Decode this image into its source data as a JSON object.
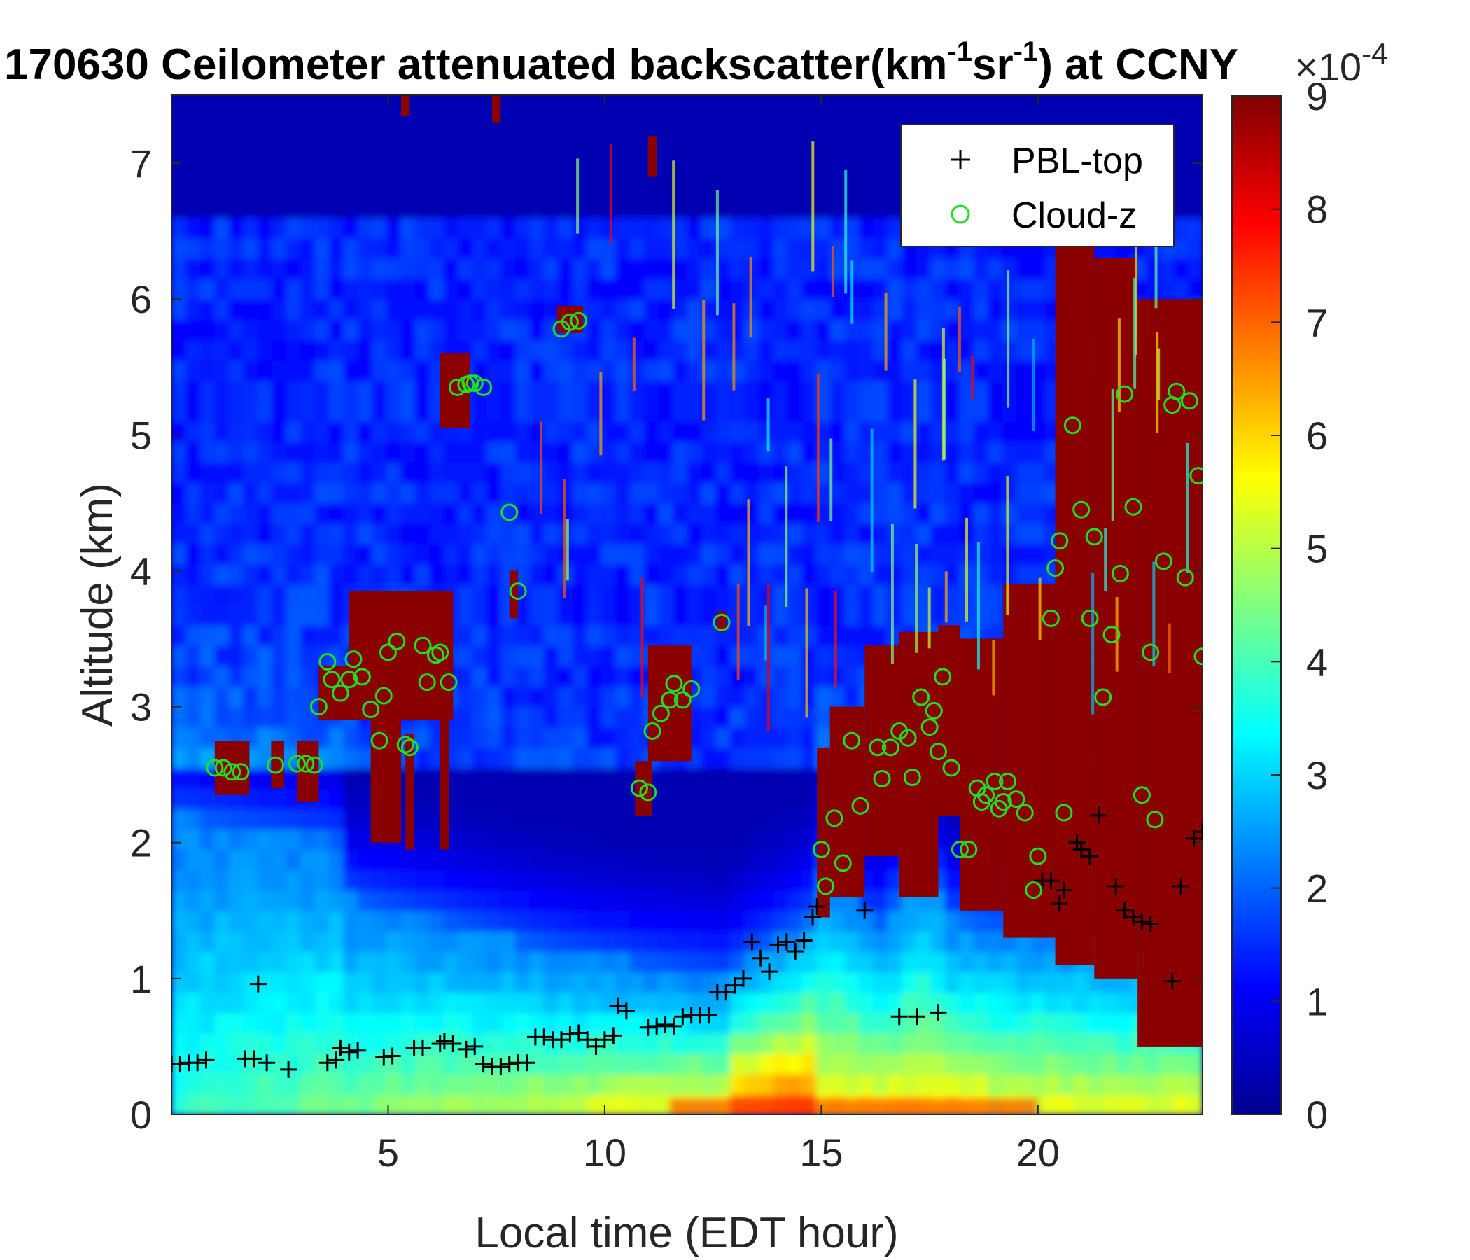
{
  "chart_data": {
    "type": "heatmap",
    "title": "170630 Ceilometer attenuated backscatter(km",
    "title_exp1": "-1",
    "title_mid": "sr",
    "title_exp2": "-1",
    "title_end": ") at CCNY",
    "xlabel": "Local time (EDT hour)",
    "ylabel": "Altitude (km)",
    "xlim": [
      0,
      23.8
    ],
    "ylim": [
      0,
      7.5
    ],
    "xticks": [
      "5",
      "10",
      "15",
      "20"
    ],
    "xtick_values": [
      5,
      10,
      15,
      20
    ],
    "yticks": [
      "0",
      "1",
      "2",
      "3",
      "4",
      "5",
      "6",
      "7"
    ],
    "ytick_values": [
      0,
      1,
      2,
      3,
      4,
      5,
      6,
      7
    ],
    "colorbar": {
      "colormap": "jet",
      "range": [
        0,
        9
      ],
      "ticks": [
        "0",
        "1",
        "2",
        "3",
        "4",
        "5",
        "6",
        "7",
        "8",
        "9"
      ],
      "tick_values": [
        0,
        1,
        2,
        3,
        4,
        5,
        6,
        7,
        8,
        9
      ],
      "multiplier_base": "×10",
      "multiplier_exp": "-4"
    },
    "legend": {
      "placement": "top-right",
      "entries": [
        {
          "label": "PBL-top",
          "marker": "+",
          "color": "#000000"
        },
        {
          "label": "Cloud-z",
          "marker": "o",
          "color": "#22dd22"
        }
      ]
    },
    "series": [
      {
        "name": "PBL-top",
        "marker": "+",
        "color": "#000000",
        "points": [
          [
            0,
            0.37
          ],
          [
            0.2,
            0.37
          ],
          [
            0.4,
            0.38
          ],
          [
            0.6,
            0.38
          ],
          [
            0.8,
            0.4
          ],
          [
            1.7,
            0.41
          ],
          [
            1.9,
            0.41
          ],
          [
            2,
            0.96
          ],
          [
            2.2,
            0.38
          ],
          [
            2.7,
            0.33
          ],
          [
            3.6,
            0.38
          ],
          [
            3.8,
            0.4
          ],
          [
            3.9,
            0.49
          ],
          [
            4.1,
            0.46
          ],
          [
            4.3,
            0.47
          ],
          [
            4.9,
            0.42
          ],
          [
            5.1,
            0.43
          ],
          [
            5.6,
            0.49
          ],
          [
            5.8,
            0.49
          ],
          [
            6.2,
            0.52
          ],
          [
            6.3,
            0.54
          ],
          [
            6.5,
            0.52
          ],
          [
            6.8,
            0.48
          ],
          [
            7,
            0.5
          ],
          [
            7.2,
            0.37
          ],
          [
            7.4,
            0.35
          ],
          [
            7.6,
            0.35
          ],
          [
            7.8,
            0.37
          ],
          [
            8,
            0.38
          ],
          [
            8.2,
            0.38
          ],
          [
            8.4,
            0.57
          ],
          [
            8.6,
            0.57
          ],
          [
            8.8,
            0.55
          ],
          [
            9.0,
            0.55
          ],
          [
            9.2,
            0.59
          ],
          [
            9.4,
            0.6
          ],
          [
            9.6,
            0.55
          ],
          [
            9.8,
            0.5
          ],
          [
            10,
            0.55
          ],
          [
            10.2,
            0.58
          ],
          [
            10.3,
            0.8
          ],
          [
            10.5,
            0.76
          ],
          [
            11,
            0.64
          ],
          [
            11.2,
            0.65
          ],
          [
            11.4,
            0.66
          ],
          [
            11.6,
            0.65
          ],
          [
            11.8,
            0.72
          ],
          [
            12,
            0.73
          ],
          [
            12.2,
            0.73
          ],
          [
            12.4,
            0.73
          ],
          [
            12.6,
            0.9
          ],
          [
            12.8,
            0.9
          ],
          [
            13,
            0.95
          ],
          [
            13.2,
            1.0
          ],
          [
            13.4,
            1.27
          ],
          [
            13.6,
            1.15
          ],
          [
            13.8,
            1.05
          ],
          [
            14,
            1.25
          ],
          [
            14.2,
            1.27
          ],
          [
            14.4,
            1.2
          ],
          [
            14.6,
            1.28
          ],
          [
            14.8,
            1.45
          ],
          [
            14.9,
            1.53
          ],
          [
            16,
            1.5
          ],
          [
            16.8,
            0.72
          ],
          [
            17.2,
            0.72
          ],
          [
            17.7,
            0.75
          ],
          [
            20.1,
            1.72
          ],
          [
            20.3,
            1.72
          ],
          [
            20.5,
            1.55
          ],
          [
            20.6,
            1.65
          ],
          [
            20.9,
            2.0
          ],
          [
            21,
            1.95
          ],
          [
            21.2,
            1.9
          ],
          [
            21.4,
            2.2
          ],
          [
            21.8,
            1.68
          ],
          [
            22,
            1.5
          ],
          [
            22.2,
            1.45
          ],
          [
            22.4,
            1.42
          ],
          [
            22.6,
            1.4
          ],
          [
            23.1,
            0.98
          ],
          [
            23.3,
            1.68
          ],
          [
            23.6,
            2.03
          ],
          [
            23.8,
            2.08
          ]
        ]
      },
      {
        "name": "Cloud-z",
        "marker": "o",
        "color": "#22dd22",
        "points": [
          [
            1,
            2.55
          ],
          [
            1.2,
            2.55
          ],
          [
            1.4,
            2.52
          ],
          [
            1.6,
            2.52
          ],
          [
            2.4,
            2.57
          ],
          [
            2.9,
            2.58
          ],
          [
            3.1,
            2.58
          ],
          [
            3.3,
            2.57
          ],
          [
            3.4,
            3.0
          ],
          [
            3.6,
            3.33
          ],
          [
            3.7,
            3.2
          ],
          [
            3.9,
            3.1
          ],
          [
            4.1,
            3.2
          ],
          [
            4.2,
            3.35
          ],
          [
            4.4,
            3.22
          ],
          [
            4.6,
            2.98
          ],
          [
            4.8,
            2.75
          ],
          [
            4.9,
            3.08
          ],
          [
            5,
            3.4
          ],
          [
            5.2,
            3.48
          ],
          [
            5.4,
            2.72
          ],
          [
            5.5,
            2.7
          ],
          [
            5.8,
            3.45
          ],
          [
            5.9,
            3.18
          ],
          [
            6.1,
            3.38
          ],
          [
            6.2,
            3.4
          ],
          [
            6.4,
            3.18
          ],
          [
            6.6,
            5.35
          ],
          [
            6.8,
            5.37
          ],
          [
            6.9,
            5.38
          ],
          [
            7,
            5.38
          ],
          [
            7.2,
            5.35
          ],
          [
            7.8,
            4.43
          ],
          [
            8,
            3.85
          ],
          [
            9,
            5.78
          ],
          [
            9.2,
            5.83
          ],
          [
            9.4,
            5.84
          ],
          [
            10.8,
            2.4
          ],
          [
            11,
            2.37
          ],
          [
            11.1,
            2.82
          ],
          [
            11.3,
            2.95
          ],
          [
            11.5,
            3.05
          ],
          [
            11.6,
            3.17
          ],
          [
            11.8,
            3.05
          ],
          [
            12,
            3.13
          ],
          [
            12.7,
            3.62
          ],
          [
            15,
            1.95
          ],
          [
            15.1,
            1.68
          ],
          [
            15.3,
            2.18
          ],
          [
            15.5,
            1.85
          ],
          [
            15.7,
            2.75
          ],
          [
            15.9,
            2.27
          ],
          [
            16.3,
            2.7
          ],
          [
            16.4,
            2.47
          ],
          [
            16.6,
            2.7
          ],
          [
            16.8,
            2.82
          ],
          [
            17.0,
            2.77
          ],
          [
            17.1,
            2.48
          ],
          [
            17.3,
            3.07
          ],
          [
            17.5,
            2.85
          ],
          [
            17.6,
            2.97
          ],
          [
            17.7,
            2.67
          ],
          [
            17.8,
            3.22
          ],
          [
            18.0,
            2.55
          ],
          [
            18.2,
            1.95
          ],
          [
            18.4,
            1.95
          ],
          [
            18.6,
            2.4
          ],
          [
            18.7,
            2.3
          ],
          [
            18.8,
            2.35
          ],
          [
            19,
            2.45
          ],
          [
            19.1,
            2.25
          ],
          [
            19.2,
            2.3
          ],
          [
            19.3,
            2.45
          ],
          [
            19.5,
            2.32
          ],
          [
            19.7,
            2.22
          ],
          [
            19.9,
            1.65
          ],
          [
            20.0,
            1.9
          ],
          [
            20.3,
            3.65
          ],
          [
            20.4,
            4.02
          ],
          [
            20.5,
            4.22
          ],
          [
            20.8,
            5.07
          ],
          [
            20.6,
            2.22
          ],
          [
            21.0,
            4.45
          ],
          [
            21.2,
            3.65
          ],
          [
            21.3,
            4.25
          ],
          [
            21.5,
            3.07
          ],
          [
            21.7,
            3.53
          ],
          [
            21.9,
            3.98
          ],
          [
            22.0,
            5.3
          ],
          [
            22.2,
            4.47
          ],
          [
            22.4,
            2.35
          ],
          [
            22.6,
            3.4
          ],
          [
            22.7,
            2.17
          ],
          [
            22.9,
            4.07
          ],
          [
            23.1,
            5.22
          ],
          [
            23.2,
            5.32
          ],
          [
            23.4,
            3.95
          ],
          [
            23.5,
            5.25
          ],
          [
            23.7,
            4.7
          ],
          [
            23.8,
            3.37
          ]
        ]
      }
    ]
  }
}
